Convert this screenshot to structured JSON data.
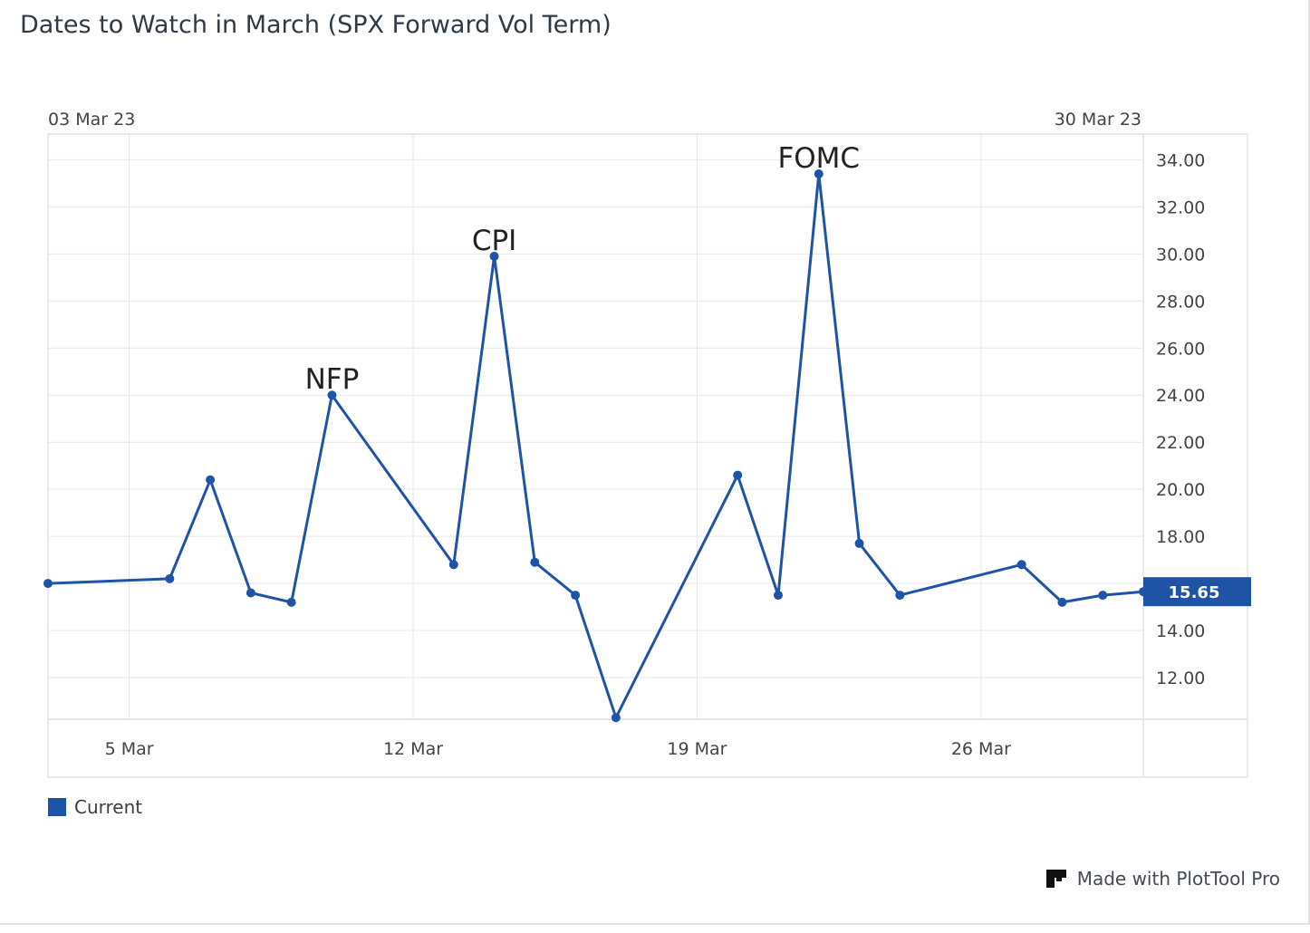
{
  "title": "Dates to Watch in March (SPX Forward Vol Term)",
  "branding": {
    "text": "Made with PlotTool Pro",
    "icon": "plottool-logo-icon"
  },
  "colors": {
    "series": "#1e53a6",
    "grid": "#e6e6e6",
    "axis_text": "#444444"
  },
  "chart_data": {
    "type": "line",
    "top_range_labels": {
      "start": "03 Mar 23",
      "end": "30 Mar 23"
    },
    "x_ticks": [
      {
        "date": "2023-03-05",
        "label": "5 Mar"
      },
      {
        "date": "2023-03-12",
        "label": "12 Mar"
      },
      {
        "date": "2023-03-19",
        "label": "19 Mar"
      },
      {
        "date": "2023-03-26",
        "label": "26 Mar"
      }
    ],
    "xlim": [
      "2023-03-03",
      "2023-03-30"
    ],
    "y_ticks": [
      12,
      14,
      16,
      18,
      20,
      22,
      24,
      26,
      28,
      30,
      32,
      34
    ],
    "y_tick_labels": [
      "12.00",
      "14.00",
      "16.00",
      "18.00",
      "20.00",
      "22.00",
      "24.00",
      "26.00",
      "28.00",
      "30.00",
      "32.00",
      "34.00"
    ],
    "ylim": [
      10.0,
      34.9
    ],
    "y_axis_side": "right",
    "grid": true,
    "legend": {
      "placement": "bottom-left",
      "entries": [
        "Current"
      ]
    },
    "last_value_label": "15.65",
    "series": [
      {
        "name": "Current",
        "points": [
          {
            "x": "2023-03-03",
            "y": 16.0
          },
          {
            "x": "2023-03-06",
            "y": 16.2
          },
          {
            "x": "2023-03-07",
            "y": 20.4
          },
          {
            "x": "2023-03-08",
            "y": 15.6
          },
          {
            "x": "2023-03-09",
            "y": 15.2
          },
          {
            "x": "2023-03-10",
            "y": 24.0
          },
          {
            "x": "2023-03-13",
            "y": 16.8
          },
          {
            "x": "2023-03-14",
            "y": 29.9
          },
          {
            "x": "2023-03-15",
            "y": 16.9
          },
          {
            "x": "2023-03-16",
            "y": 15.5
          },
          {
            "x": "2023-03-17",
            "y": 10.3
          },
          {
            "x": "2023-03-20",
            "y": 20.6
          },
          {
            "x": "2023-03-21",
            "y": 15.5
          },
          {
            "x": "2023-03-22",
            "y": 33.4
          },
          {
            "x": "2023-03-23",
            "y": 17.7
          },
          {
            "x": "2023-03-24",
            "y": 15.5
          },
          {
            "x": "2023-03-27",
            "y": 16.8
          },
          {
            "x": "2023-03-28",
            "y": 15.2
          },
          {
            "x": "2023-03-29",
            "y": 15.5
          },
          {
            "x": "2023-03-30",
            "y": 15.65
          }
        ]
      }
    ],
    "annotations": [
      {
        "text": "NFP",
        "x": "2023-03-10",
        "y": 24.0
      },
      {
        "text": "CPI",
        "x": "2023-03-14",
        "y": 29.9
      },
      {
        "text": "FOMC",
        "x": "2023-03-22",
        "y": 33.4
      }
    ]
  }
}
